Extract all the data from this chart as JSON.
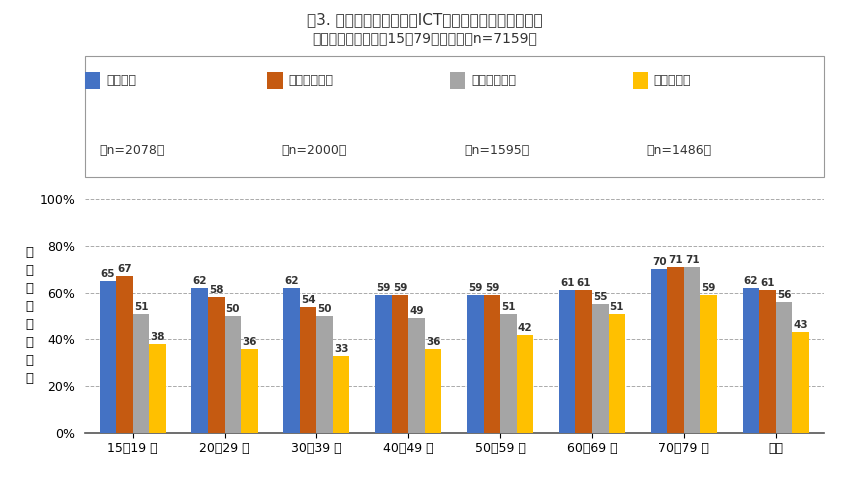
{
  "title": "図3. 健康だと思う割合（ICT機器による連絡頻度別）",
  "subtitle": "［調査対象：全国・15～79歳の男女・n=7159］",
  "categories": [
    "15－19 歳",
    "20－29 歳",
    "30－39 歳",
    "40－49 歳",
    "50－59 歳",
    "60－69 歳",
    "70－79 歳",
    "平均"
  ],
  "series": [
    {
      "label": "ほぼ毎日",
      "n": "n=2078",
      "color": "#4472C4",
      "values": [
        65,
        62,
        62,
        59,
        59,
        61,
        70,
        62
      ]
    },
    {
      "label": "週に数回程度",
      "n": "n=2000",
      "color": "#C55A11",
      "values": [
        67,
        58,
        54,
        59,
        59,
        61,
        71,
        61
      ]
    },
    {
      "label": "月に数回程度",
      "n": "n=1595",
      "color": "#A5A5A5",
      "values": [
        51,
        50,
        50,
        49,
        51,
        55,
        71,
        56
      ]
    },
    {
      "label": "殆どしない",
      "n": "n=1486",
      "color": "#FFC000",
      "values": [
        38,
        36,
        33,
        36,
        42,
        51,
        59,
        43
      ]
    }
  ],
  "ylabel": "健\n康\nだ\nと\n思\nう\n割\n合",
  "ylim": [
    0,
    100
  ],
  "yticks": [
    0,
    20,
    40,
    60,
    80,
    100
  ],
  "ytick_labels": [
    "0%",
    "20%",
    "40%",
    "60%",
    "80%",
    "100%"
  ],
  "background_color": "#FFFFFF",
  "grid_color": "#AAAAAA",
  "title_fontsize": 11,
  "subtitle_fontsize": 10,
  "label_fontsize": 7.5,
  "tick_fontsize": 9,
  "legend_fontsize": 9
}
